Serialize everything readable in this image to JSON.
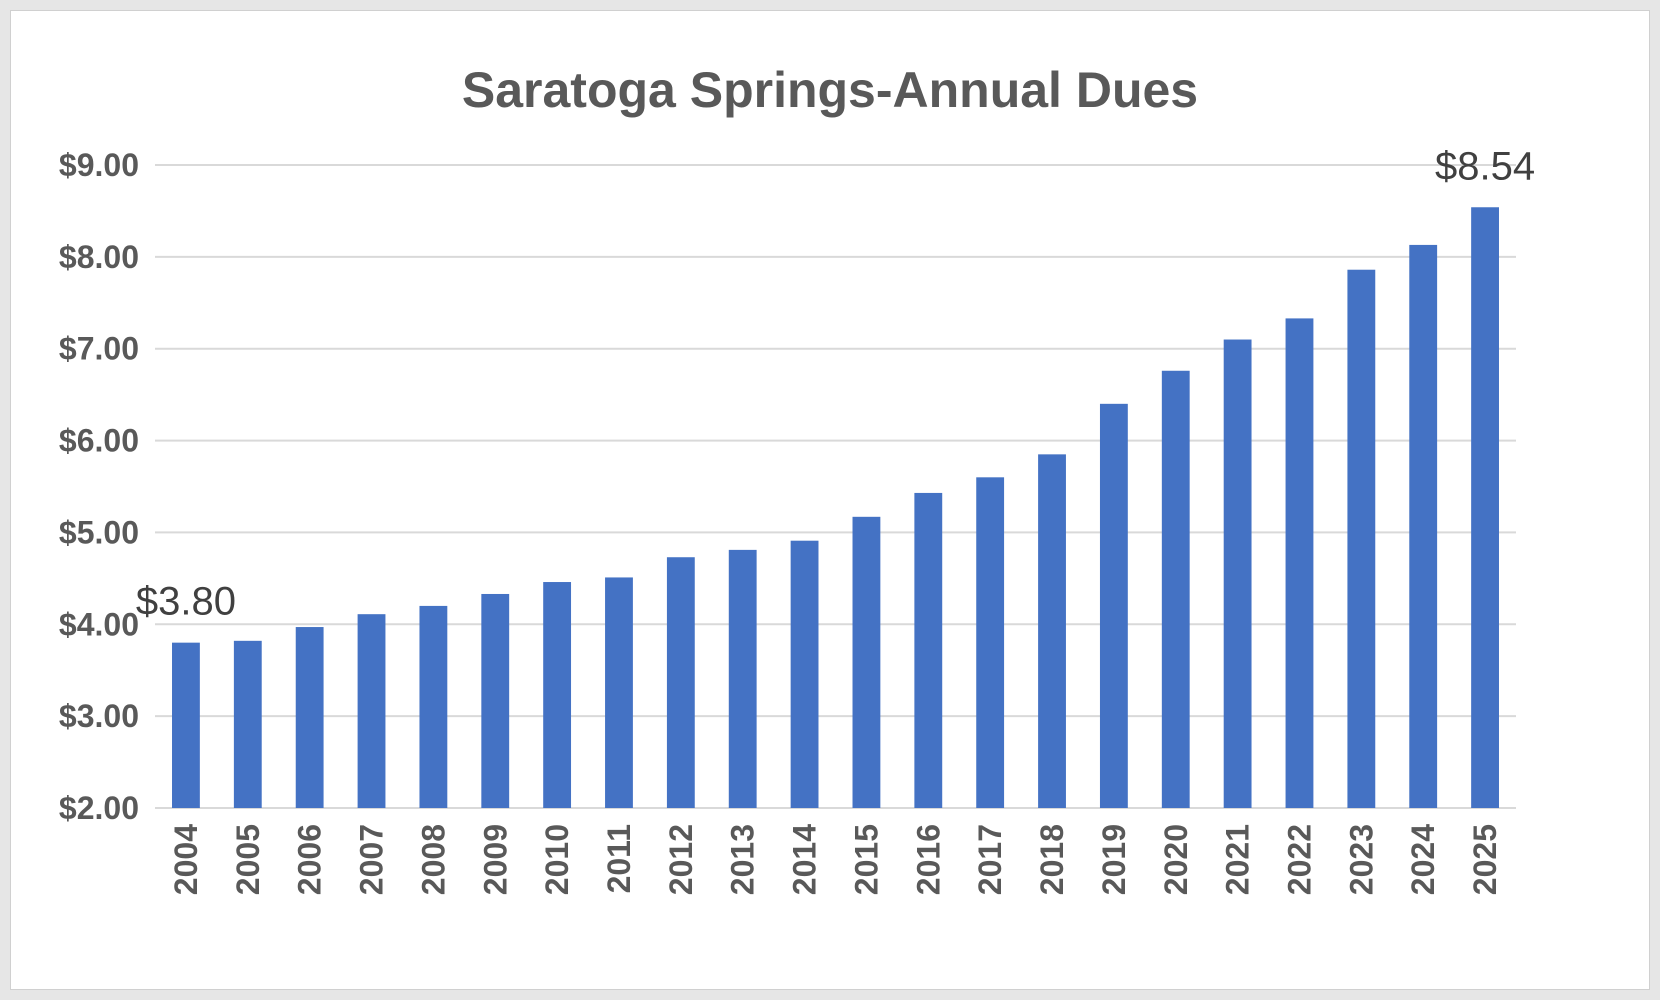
{
  "chart_data": {
    "type": "bar",
    "title": "Saratoga Springs-Annual Dues",
    "xlabel": "",
    "ylabel": "",
    "ylim": [
      2,
      9
    ],
    "yticks": [
      2,
      3,
      4,
      5,
      6,
      7,
      8,
      9
    ],
    "ytick_labels": [
      "$2.00",
      "$3.00",
      "$4.00",
      "$5.00",
      "$6.00",
      "$7.00",
      "$8.00",
      "$9.00"
    ],
    "grid": true,
    "legend": "none",
    "bar_color": "#4472C4",
    "categories": [
      "2004",
      "2005",
      "2006",
      "2007",
      "2008",
      "2009",
      "2010",
      "2011",
      "2012",
      "2013",
      "2014",
      "2015",
      "2016",
      "2017",
      "2018",
      "2019",
      "2020",
      "2021",
      "2022",
      "2023",
      "2024",
      "2025"
    ],
    "values": [
      3.8,
      3.82,
      3.97,
      4.11,
      4.2,
      4.33,
      4.46,
      4.51,
      4.73,
      4.81,
      4.91,
      5.17,
      5.43,
      5.6,
      5.85,
      6.4,
      6.76,
      7.1,
      7.33,
      7.86,
      8.13,
      8.54
    ],
    "data_labels": [
      {
        "category": "2004",
        "text": "$3.80"
      },
      {
        "category": "2025",
        "text": "$8.54"
      }
    ]
  }
}
